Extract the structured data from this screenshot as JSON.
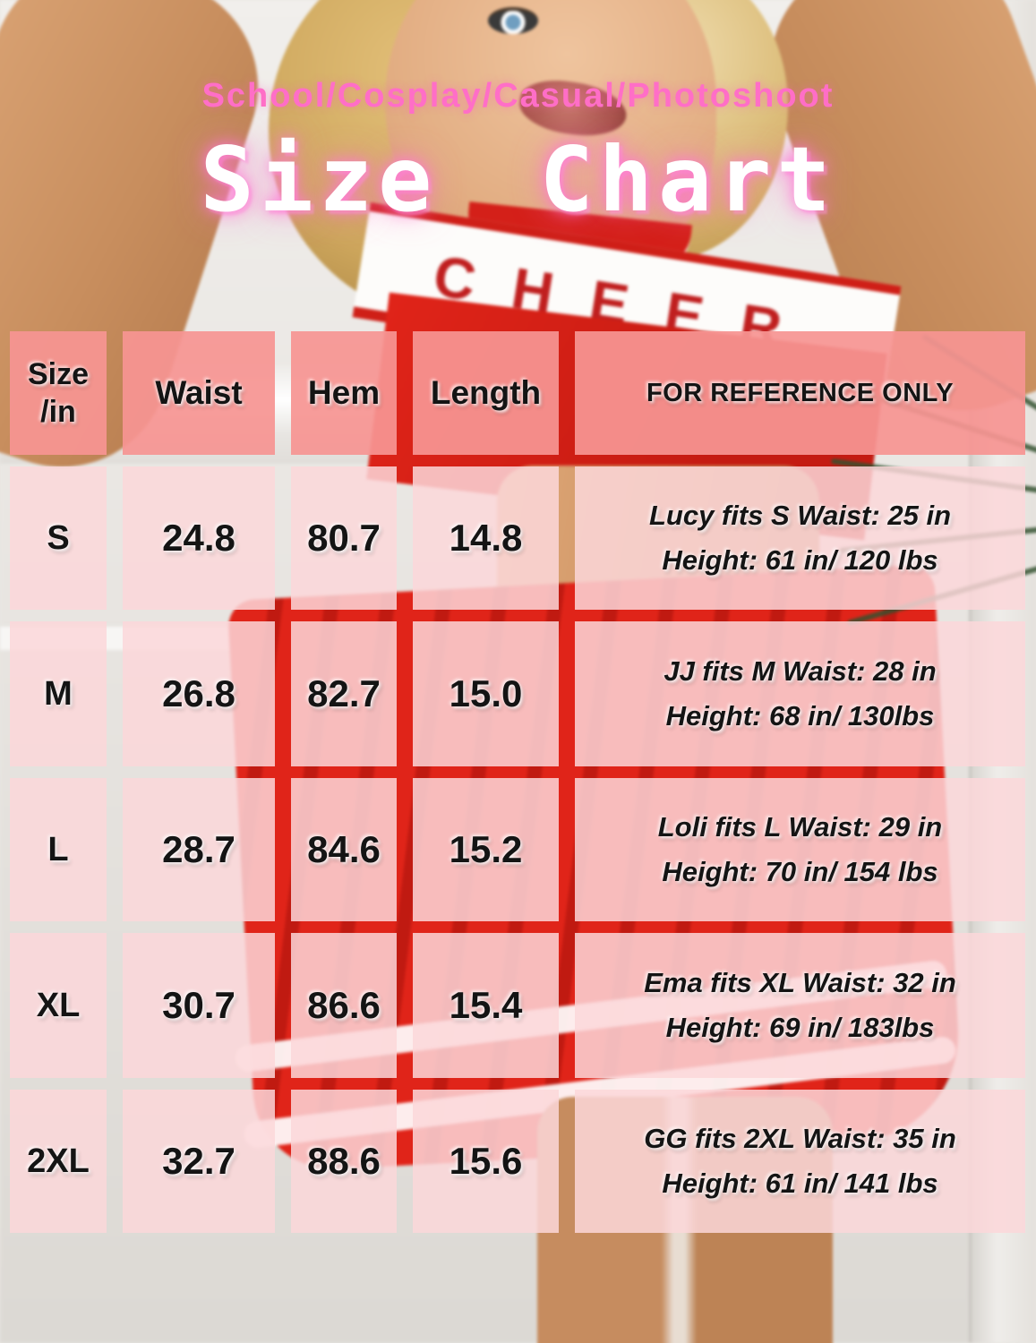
{
  "header": {
    "subtitle": "School/Cosplay/Casual/Photoshoot",
    "title": "Size Chart"
  },
  "photo": {
    "garment_text": "CHEER"
  },
  "table": {
    "columns": [
      "Size\n/in",
      "Waist",
      "Hem",
      "Length",
      "FOR REFERENCE ONLY"
    ],
    "rows": [
      {
        "size": "S",
        "waist": "24.8",
        "hem": "80.7",
        "length": "14.8",
        "reference_line1": "Lucy fits S Waist: 25 in",
        "reference_line2": "Height: 61 in/ 120 lbs"
      },
      {
        "size": "M",
        "waist": "26.8",
        "hem": "82.7",
        "length": "15.0",
        "reference_line1": "JJ fits M Waist: 28 in",
        "reference_line2": "Height: 68 in/ 130lbs"
      },
      {
        "size": "L",
        "waist": "28.7",
        "hem": "84.6",
        "length": "15.2",
        "reference_line1": "Loli  fits L Waist: 29 in",
        "reference_line2": "Height: 70 in/ 154 lbs"
      },
      {
        "size": "XL",
        "waist": "30.7",
        "hem": "86.6",
        "length": "15.4",
        "reference_line1": "Ema fits XL Waist: 32 in",
        "reference_line2": "Height: 69 in/ 183lbs"
      },
      {
        "size": "2XL",
        "waist": "32.7",
        "hem": "88.6",
        "length": "15.6",
        "reference_line1": "GG fits 2XL Waist: 35 in",
        "reference_line2": "Height: 61 in/ 141 lbs"
      }
    ]
  },
  "colors": {
    "subtitle_pink": "#FF6EC7",
    "title_text": "#FFFFFF",
    "title_glow": "#FF78D7",
    "header_cell": "#F69492",
    "body_cell": "#FCD7D9",
    "cell_text": "#141414",
    "outfit_red": "#E02419"
  },
  "chart_data": {
    "type": "table",
    "title": "Size Chart",
    "subtitle": "School/Cosplay/Casual/Photoshoot",
    "columns": [
      "Size /in",
      "Waist",
      "Hem",
      "Length",
      "FOR REFERENCE ONLY"
    ],
    "rows": [
      [
        "S",
        24.8,
        80.7,
        14.8,
        "Lucy fits S Waist: 25 in Height: 61 in/ 120 lbs"
      ],
      [
        "M",
        26.8,
        82.7,
        15.0,
        "JJ fits M Waist: 28 in Height: 68 in/ 130lbs"
      ],
      [
        "L",
        28.7,
        84.6,
        15.2,
        "Loli fits L Waist: 29 in Height: 70 in/ 154 lbs"
      ],
      [
        "XL",
        30.7,
        86.6,
        15.4,
        "Ema fits XL Waist: 32 in Height: 69 in/ 183lbs"
      ],
      [
        "2XL",
        32.7,
        88.6,
        15.6,
        "GG fits 2XL Waist: 35 in Height: 61 in/ 141 lbs"
      ]
    ]
  }
}
